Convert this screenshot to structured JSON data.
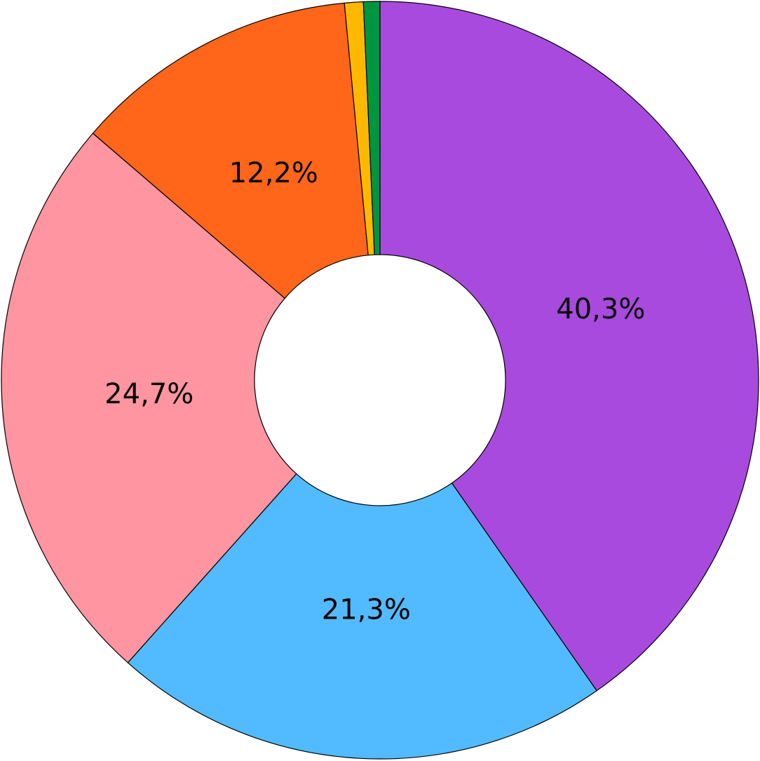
{
  "chart_data": {
    "type": "donut",
    "values": [
      40.3,
      21.3,
      24.7,
      12.2,
      0.8,
      0.7
    ],
    "value_labels": [
      "40,3%",
      "21,3%",
      "24,7%",
      "12,2%",
      null,
      null
    ],
    "colors": [
      "#a94ade",
      "#52bbff",
      "#ff95a0",
      "#ff661a",
      "#ffb800",
      "#00963f"
    ]
  }
}
